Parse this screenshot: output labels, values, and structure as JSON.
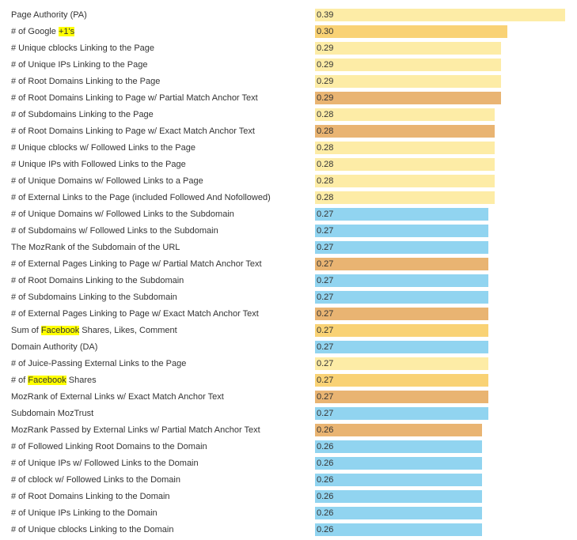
{
  "colors": {
    "light_yellow": "#fdeca6",
    "yellow": "#f9d275",
    "orange": "#e9b472",
    "blue": "#91d4f0",
    "highlight": "#ffff00"
  },
  "chart_data": {
    "type": "bar",
    "orientation": "horizontal",
    "xlim": [
      0,
      0.39
    ],
    "grid": false,
    "legend": "none",
    "rows": [
      {
        "label": "Page Authority (PA)",
        "value": "0.39",
        "color": "light_yellow",
        "highlight": ""
      },
      {
        "label": "# of Google +1's",
        "value": "0.30",
        "color": "yellow",
        "highlight": "+1's"
      },
      {
        "label": "# Unique cblocks Linking to the Page",
        "value": "0.29",
        "color": "light_yellow",
        "highlight": ""
      },
      {
        "label": "# of Unique IPs Linking to the Page",
        "value": "0.29",
        "color": "light_yellow",
        "highlight": ""
      },
      {
        "label": "# of Root Domains Linking to the Page",
        "value": "0.29",
        "color": "light_yellow",
        "highlight": ""
      },
      {
        "label": "# of Root Domains Linking to Page w/ Partial Match Anchor Text",
        "value": "0.29",
        "color": "orange",
        "highlight": ""
      },
      {
        "label": "# of Subdomains Linking to the Page",
        "value": "0.28",
        "color": "light_yellow",
        "highlight": ""
      },
      {
        "label": "# of Root Domains Linking to Page w/ Exact Match Anchor Text",
        "value": "0.28",
        "color": "orange",
        "highlight": ""
      },
      {
        "label": "# Unique cblocks w/ Followed Links to the Page",
        "value": "0.28",
        "color": "light_yellow",
        "highlight": ""
      },
      {
        "label": "# Unique IPs with Followed Links to the Page",
        "value": "0.28",
        "color": "light_yellow",
        "highlight": ""
      },
      {
        "label": "# of Unique Domains w/ Followed Links to a Page",
        "value": "0.28",
        "color": "light_yellow",
        "highlight": ""
      },
      {
        "label": "# of External Links to the Page (included Followed And Nofollowed)",
        "value": "0.28",
        "color": "light_yellow",
        "highlight": ""
      },
      {
        "label": "# of Unique Domains w/ Followed Links to the Subdomain",
        "value": "0.27",
        "color": "blue",
        "highlight": ""
      },
      {
        "label": "# of Subdomains w/ Followed Links to the Subdomain",
        "value": "0.27",
        "color": "blue",
        "highlight": ""
      },
      {
        "label": "The MozRank of the Subdomain of the URL",
        "value": "0.27",
        "color": "blue",
        "highlight": ""
      },
      {
        "label": "# of External Pages Linking to Page w/ Partial Match Anchor Text",
        "value": "0.27",
        "color": "orange",
        "highlight": ""
      },
      {
        "label": "# of Root Domains Linking to the Subdomain",
        "value": "0.27",
        "color": "blue",
        "highlight": ""
      },
      {
        "label": "# of Subdomains Linking to the Subdomain",
        "value": "0.27",
        "color": "blue",
        "highlight": ""
      },
      {
        "label": "# of External Pages Linking to Page w/ Exact Match Anchor Text",
        "value": "0.27",
        "color": "orange",
        "highlight": ""
      },
      {
        "label": "Sum of Facebook Shares, Likes, Comment",
        "value": "0.27",
        "color": "yellow",
        "highlight": "Facebook"
      },
      {
        "label": "Domain Authority (DA)",
        "value": "0.27",
        "color": "blue",
        "highlight": ""
      },
      {
        "label": "# of Juice-Passing External Links to the Page",
        "value": "0.27",
        "color": "light_yellow",
        "highlight": ""
      },
      {
        "label": "# of Facebook Shares",
        "value": "0.27",
        "color": "yellow",
        "highlight": "Facebook"
      },
      {
        "label": "MozRank of External Links w/ Exact Match Anchor Text",
        "value": "0.27",
        "color": "orange",
        "highlight": ""
      },
      {
        "label": "Subdomain MozTrust",
        "value": "0.27",
        "color": "blue",
        "highlight": ""
      },
      {
        "label": "MozRank Passed by External Links w/ Partial Match Anchor Text",
        "value": "0.26",
        "color": "orange",
        "highlight": ""
      },
      {
        "label": "# of Followed Linking Root Domains to the Domain",
        "value": "0.26",
        "color": "blue",
        "highlight": ""
      },
      {
        "label": "# of Unique IPs w/ Followed Links to the Domain",
        "value": "0.26",
        "color": "blue",
        "highlight": ""
      },
      {
        "label": "# of cblock w/ Followed Links to the Domain",
        "value": "0.26",
        "color": "blue",
        "highlight": ""
      },
      {
        "label": "# of Root Domains Linking to the Domain",
        "value": "0.26",
        "color": "blue",
        "highlight": ""
      },
      {
        "label": "# of Unique IPs Linking to the Domain",
        "value": "0.26",
        "color": "blue",
        "highlight": ""
      },
      {
        "label": "# of Unique cblocks Linking to the Domain",
        "value": "0.26",
        "color": "blue",
        "highlight": ""
      }
    ]
  }
}
